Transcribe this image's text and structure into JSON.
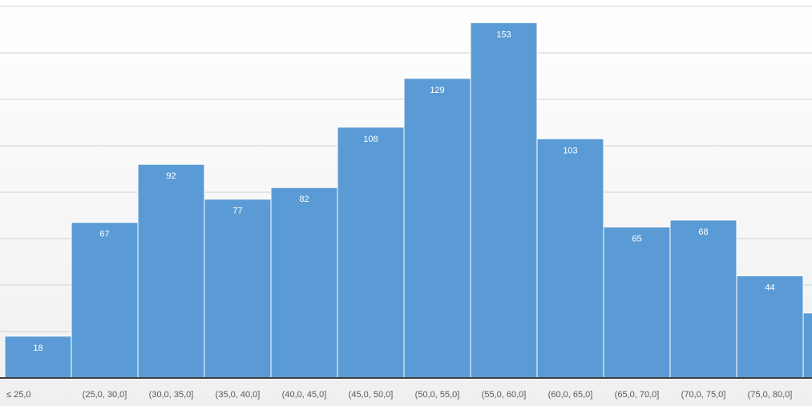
{
  "chart_data": {
    "type": "bar",
    "title": "",
    "xlabel": "",
    "ylabel": "",
    "categories": [
      "≤ 25,0",
      "(25,0, 30,0]",
      "(30,0, 35,0]",
      "(35,0, 40,0]",
      "(40,0, 45,0]",
      "(45,0, 50,0]",
      "(50,0, 55,0]",
      "(55,0, 60,0]",
      "(60,0, 65,0]",
      "(65,0, 70,0]",
      "(70,0, 75,0]",
      "(75,0, 80,0]",
      ""
    ],
    "values": [
      18,
      67,
      92,
      77,
      82,
      108,
      129,
      153,
      103,
      65,
      68,
      44,
      28
    ],
    "value_labels": [
      "18",
      "67",
      "92",
      "77",
      "82",
      "108",
      "129",
      "153",
      "103",
      "65",
      "68",
      "44",
      ""
    ],
    "ylim": [
      0,
      160
    ],
    "grid": true,
    "legend": "none",
    "colors": {
      "bar": "#5b9bd5",
      "bar_border": "#ffffff",
      "grid": "#d0d0d0",
      "axis": "#404040",
      "background_top": "#ffffff",
      "background_bottom": "#f0f0f0",
      "label": "#ffffff",
      "tick_text": "#595959"
    }
  }
}
